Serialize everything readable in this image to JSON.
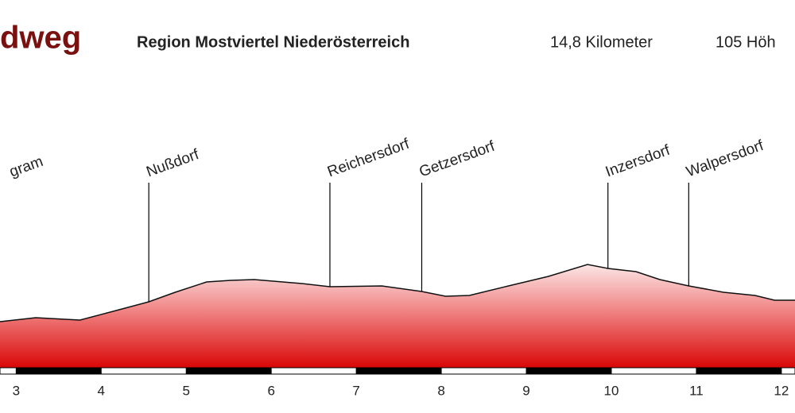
{
  "chart_data": {
    "type": "area",
    "title": "dweg",
    "subtitle": "Region Mostviertel Niederösterreich",
    "annotations": [
      "14,8 Kilometer",
      "105 Höh"
    ],
    "x": [
      2.81,
      3.23,
      3.75,
      4.21,
      4.56,
      4.87,
      5.24,
      5.52,
      5.8,
      6.36,
      6.69,
      7.3,
      7.77,
      8.05,
      8.33,
      8.79,
      9.26,
      9.72,
      9.96,
      10.29,
      10.57,
      10.91,
      11.32,
      11.69,
      11.92,
      12.16
    ],
    "values": [
      62,
      67,
      64,
      77,
      87,
      99,
      112,
      114,
      115,
      110,
      106,
      107,
      100,
      94,
      95,
      107,
      119,
      134,
      129,
      125,
      115,
      107,
      99,
      95,
      89,
      89
    ],
    "places": [
      {
        "name": "gram",
        "km": 2.95
      },
      {
        "name": "Nußdorf",
        "km": 4.56
      },
      {
        "name": "Reichersdorf",
        "km": 6.69
      },
      {
        "name": "Getzersdorf",
        "km": 7.77
      },
      {
        "name": "Inzersdorf",
        "km": 9.96
      },
      {
        "name": "Walpersdorf",
        "km": 10.91
      }
    ],
    "color": "#e00000",
    "xlim": [
      2.81,
      12.16
    ],
    "ylim": [
      0,
      400
    ],
    "xticks": [
      3,
      4,
      5,
      6,
      7,
      8,
      9,
      10,
      11,
      12
    ]
  }
}
